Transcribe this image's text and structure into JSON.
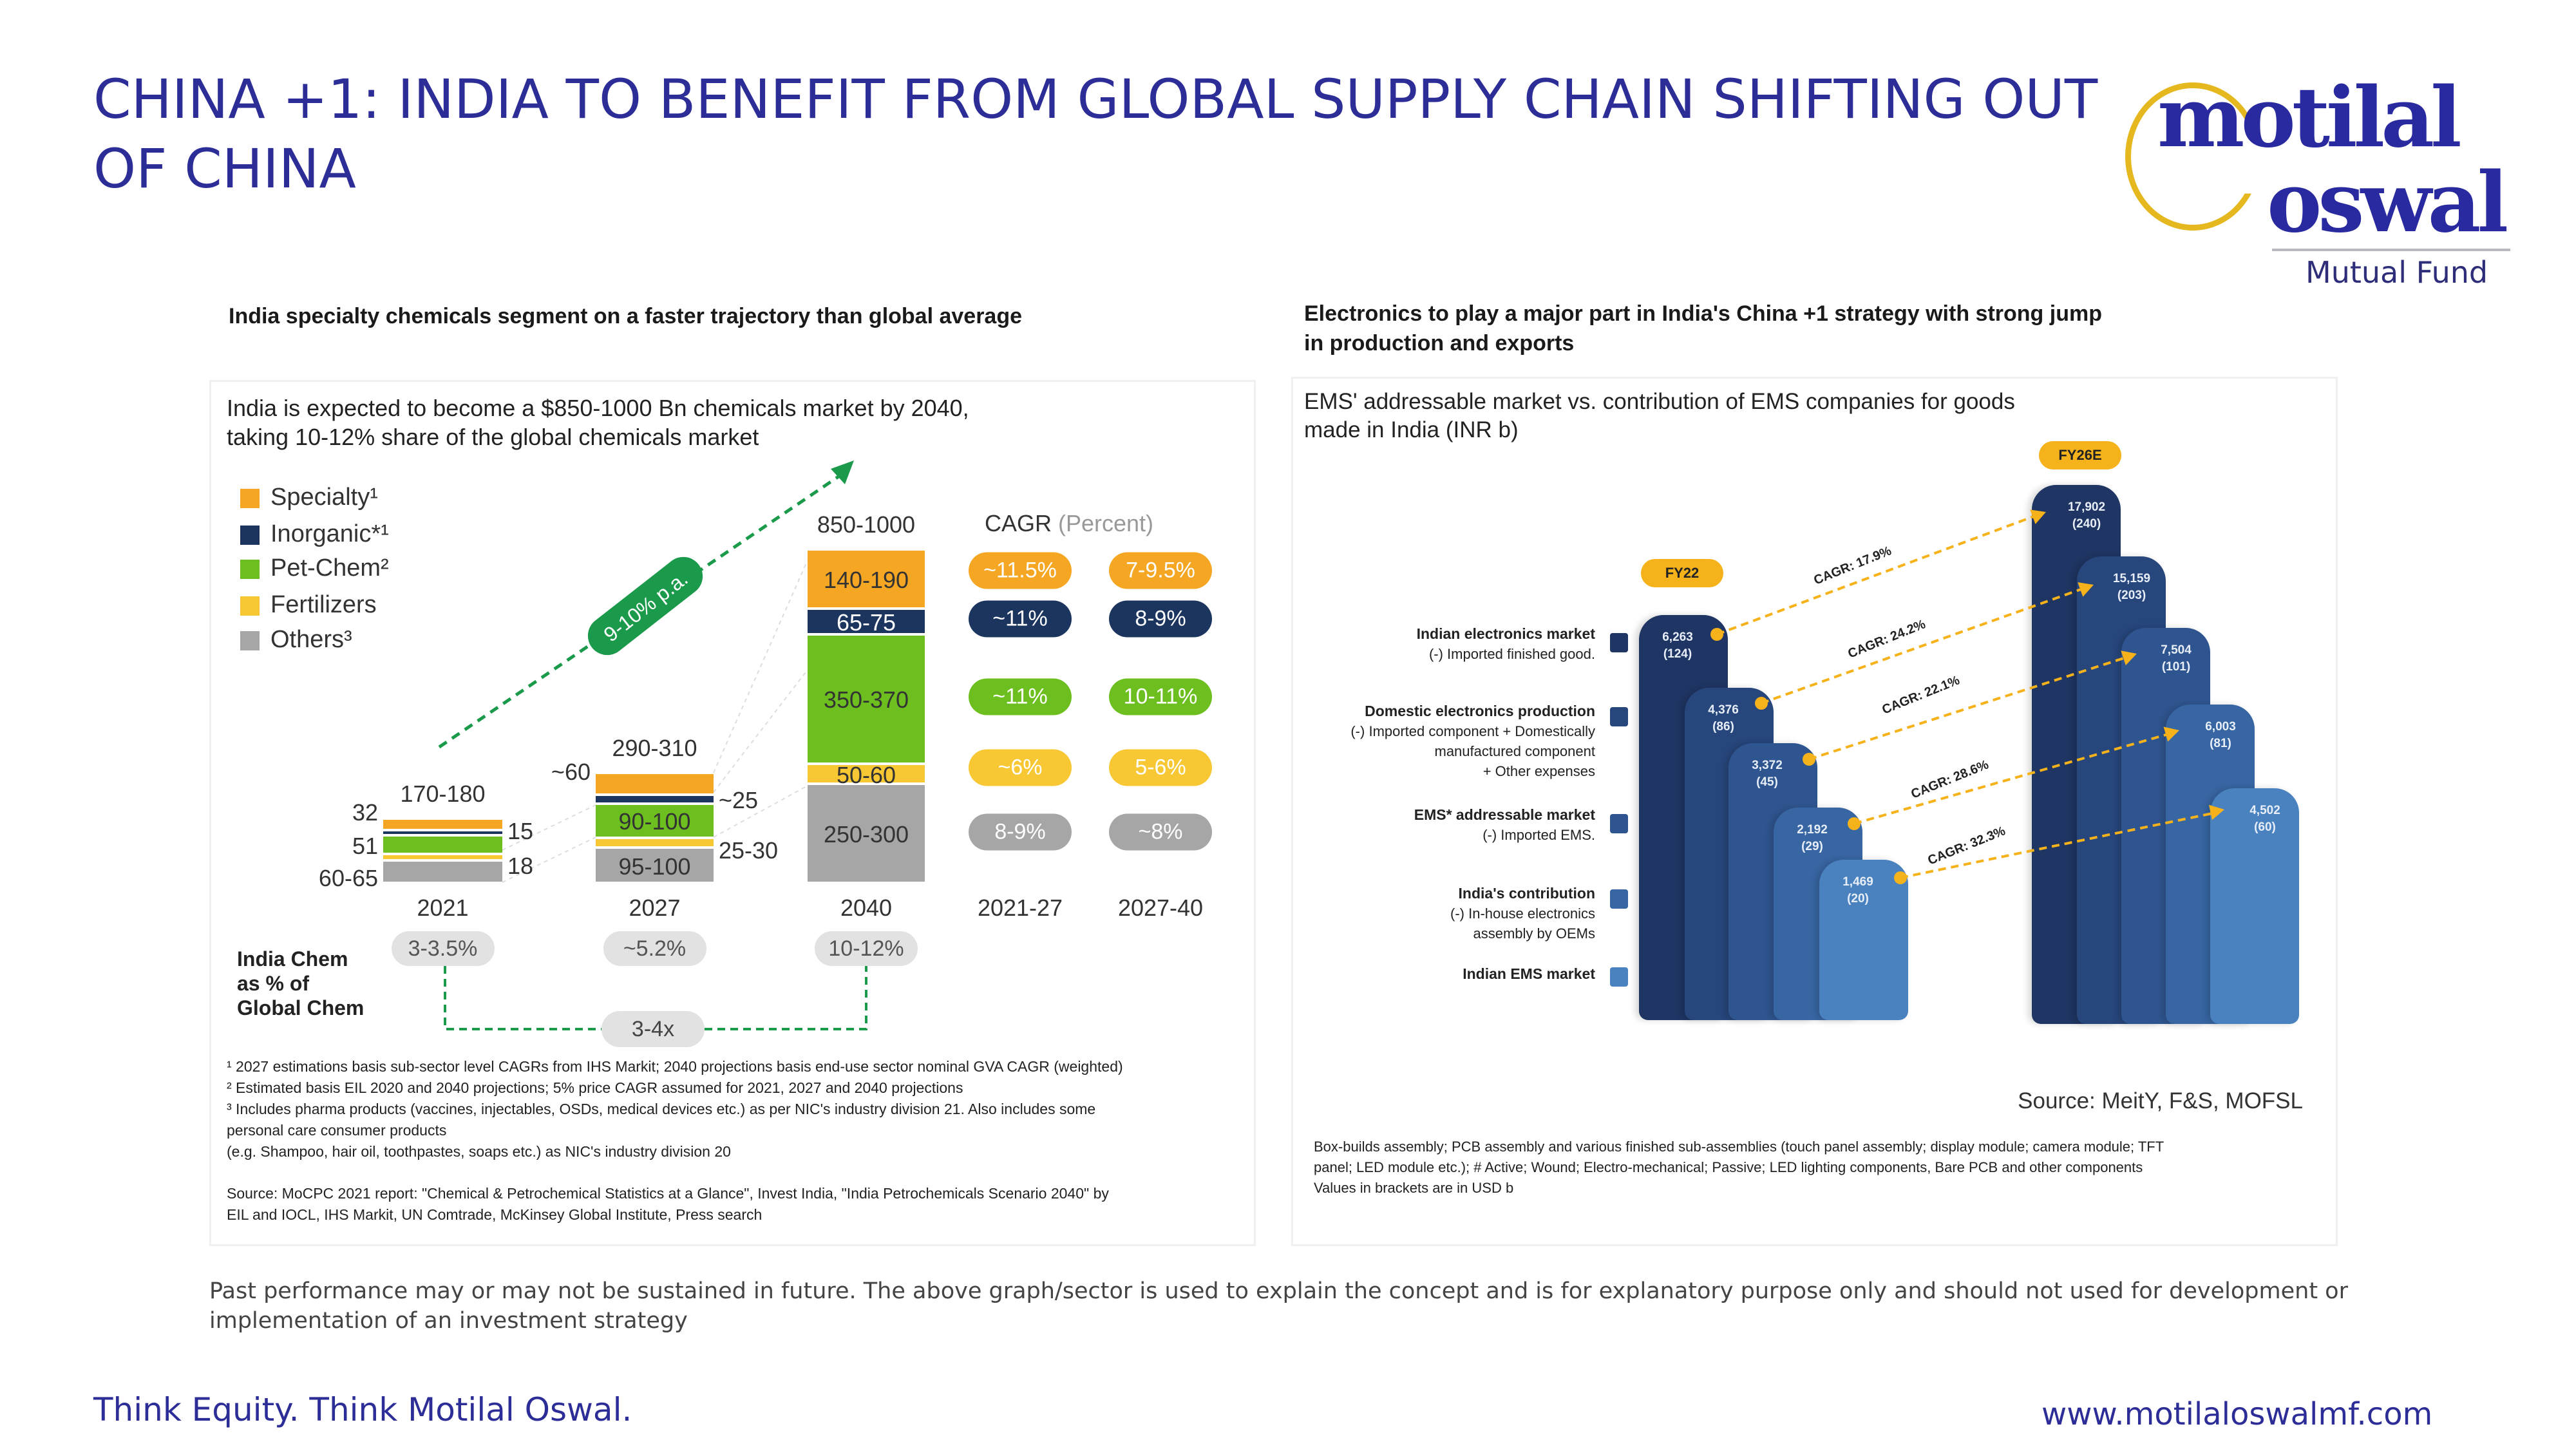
{
  "header": {
    "title": "CHINA +1: INDIA TO BENEFIT FROM GLOBAL SUPPLY CHAIN SHIFTING OUT OF CHINA"
  },
  "logo": {
    "line1": "motilal",
    "line2": "oswal",
    "sub": "Mutual Fund",
    "ring_color": "#e6b820",
    "brand_color": "#2a2aa0"
  },
  "left": {
    "heading": "India specialty chemicals segment on a faster trajectory than global average",
    "subtitle_1": "India is expected to become a $850-1000 Bn chemicals market by 2040,",
    "subtitle_2": "taking 10-12% share of the global chemicals market",
    "growth_label": "9-10% p.a.",
    "share_label_1": "India Chem",
    "share_label_2": "as % of",
    "share_label_3": "Global Chem",
    "multiplier": "3-4x",
    "footnotes": [
      "¹ 2027 estimations basis sub-sector level CAGRs from IHS Markit; 2040 projections basis end-use sector nominal GVA CAGR (weighted)",
      "² Estimated basis EIL 2020 and 2040 projections; 5% price CAGR assumed for 2021, 2027 and 2040 projections",
      "³ Includes pharma products (vaccines, injectables, OSDs, medical devices etc.) as per NIC's industry division 21. Also includes some",
      "personal care consumer products",
      "(e.g. Shampoo, hair oil, toothpastes, soaps etc.) as NIC's industry division 20",
      "Source: MoCPC 2021 report: \"Chemical & Petrochemical Statistics at a Glance\", Invest India, \"India Petrochemicals Scenario 2040\" by",
      "EIL and IOCL, IHS Markit, UN Comtrade, McKinsey Global Institute, Press search"
    ]
  },
  "right": {
    "heading_1": "Electronics to play a major part in India's China +1 strategy with strong jump",
    "heading_2": "in production and exports",
    "subtitle_1": "EMS' addressable market vs. contribution of EMS companies for goods",
    "subtitle_2": "made in India (INR b)",
    "source": "Source: MeitY, F&S, MOFSL",
    "footnotes": [
      "Box-builds assembly; PCB assembly and various finished sub-assemblies (touch panel assembly; display module; camera module; TFT",
      "panel; LED module etc.); # Active; Wound; Electro-mechanical; Passive; LED lighting components, Bare PCB and other components",
      "Values in brackets are in USD b"
    ],
    "legend": [
      {
        "title": "Indian electronics market",
        "lines": [
          "(-) Imported finished good."
        ]
      },
      {
        "title": "Domestic electronics production",
        "lines": [
          "(-) Imported component + Domestically",
          "manufactured component",
          "+ Other expenses"
        ]
      },
      {
        "title": "EMS* addressable market",
        "lines": [
          "(-) Imported EMS."
        ]
      },
      {
        "title": "India's contribution",
        "lines": [
          "(-) In-house electronics",
          "assembly by OEMs"
        ]
      },
      {
        "title": "Indian EMS market",
        "lines": []
      }
    ]
  },
  "disclaimer": "Past performance may or may not be sustained in future. The above graph/sector is used to explain the concept and is for explanatory purpose only and should not used for development or implementation of an investment strategy",
  "footer": {
    "tagline": "Think Equity. Think Motilal Oswal.",
    "url": "www.motilaloswalmf.com"
  },
  "chart_data": [
    {
      "type": "bar",
      "title": "India chemicals market (USD Bn)",
      "stacked": true,
      "categories": [
        "2021",
        "2027",
        "2040"
      ],
      "totals": [
        "170-180",
        "290-310",
        "850-1000"
      ],
      "series": [
        {
          "name": "Specialty¹",
          "color": "#f5a623",
          "labels": [
            "32",
            "~60",
            "140-190"
          ],
          "values": [
            32,
            60,
            165
          ]
        },
        {
          "name": "Inorganic*¹",
          "color": "#1c355e",
          "labels": [
            "15",
            "~25",
            "65-75"
          ],
          "values": [
            15,
            25,
            70
          ]
        },
        {
          "name": "Pet-Chem²",
          "color": "#6cbf1e",
          "labels": [
            "51",
            "90-100",
            "350-370"
          ],
          "values": [
            51,
            95,
            360
          ]
        },
        {
          "name": "Fertilizers",
          "color": "#f7c833",
          "labels": [
            "18",
            "25-30",
            "50-60"
          ],
          "values": [
            18,
            27.5,
            55
          ]
        },
        {
          "name": "Others³",
          "color": "#a6a6a6",
          "labels": [
            "60-65",
            "95-100",
            "250-300"
          ],
          "values": [
            62.5,
            97.5,
            275
          ]
        }
      ],
      "share_of_global": [
        "3-3.5%",
        "~5.2%",
        "10-12%"
      ],
      "cagr": {
        "title": "CAGR",
        "unit": "(Percent)",
        "periods": [
          "2021-27",
          "2027-40"
        ],
        "rows": [
          [
            "~11.5%",
            "7-9.5%"
          ],
          [
            "~11%",
            "8-9%"
          ],
          [
            "~11%",
            "10-11%"
          ],
          [
            "~6%",
            "5-6%"
          ],
          [
            "8-9%",
            "~8%"
          ]
        ]
      }
    },
    {
      "type": "bar",
      "title": "EMS' addressable market vs. contribution of EMS companies (INR b)",
      "categories": [
        "FY22",
        "FY26E"
      ],
      "series_names": [
        "Indian electronics market",
        "Domestic electronics production",
        "EMS* addressable market",
        "India's contribution",
        "Indian EMS market"
      ],
      "colors": [
        "#1f3563",
        "#27467c",
        "#2f5590",
        "#3866a3",
        "#4a82bf"
      ],
      "FY22": [
        {
          "value": "6,263",
          "usd": "(124)"
        },
        {
          "value": "4,376",
          "usd": "(86)"
        },
        {
          "value": "3,372",
          "usd": "(45)"
        },
        {
          "value": "2,192",
          "usd": "(29)"
        },
        {
          "value": "1,469",
          "usd": "(20)"
        }
      ],
      "FY26E": [
        {
          "value": "17,902",
          "usd": "(240)"
        },
        {
          "value": "15,159",
          "usd": "(203)"
        },
        {
          "value": "7,504",
          "usd": "(101)"
        },
        {
          "value": "6,003",
          "usd": "(81)"
        },
        {
          "value": "4,502",
          "usd": "(60)"
        }
      ],
      "cagr": [
        "CAGR: 17.9%",
        "CAGR: 24.2%",
        "CAGR: 22.1%",
        "CAGR: 28.6%",
        "CAGR: 32.3%"
      ],
      "accent": "#f5b21a"
    }
  ]
}
